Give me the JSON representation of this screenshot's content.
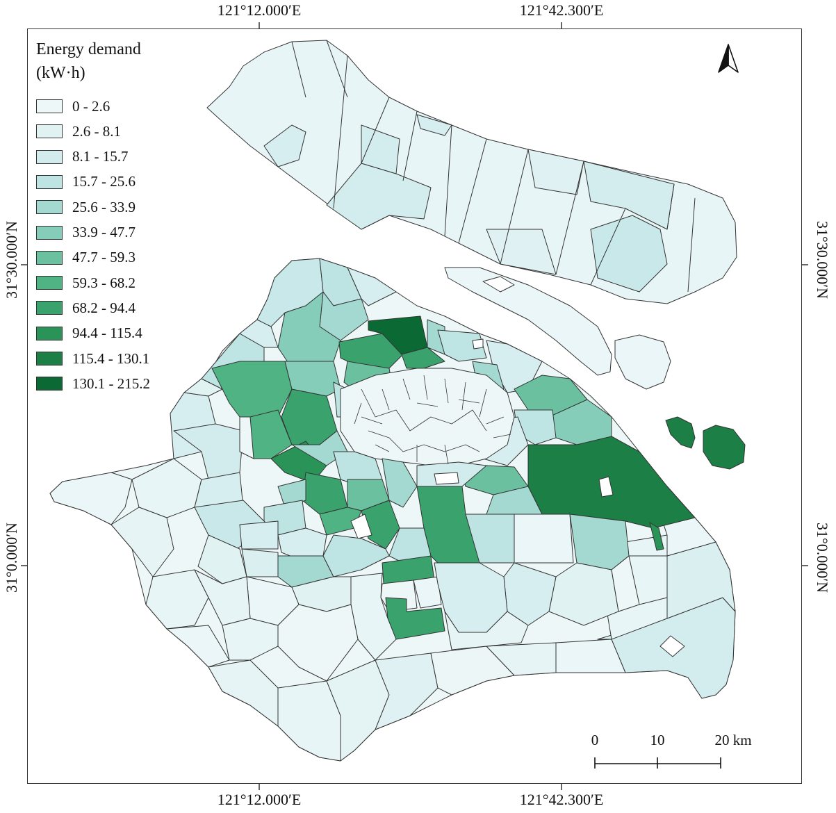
{
  "axes": {
    "top_labels": [
      "121°12.000′E",
      "121°42.300′E"
    ],
    "bottom_labels": [
      "121°12.000′E",
      "121°42.300′E"
    ],
    "left_labels": [
      "31°30.000′N",
      "31°0.000′N"
    ],
    "right_labels": [
      "31°30.000′N",
      "31°0.000′N"
    ]
  },
  "legend": {
    "title_line1": "Energy demand",
    "title_line2": "(kW·h)",
    "classes": [
      {
        "label": "0 - 2.6",
        "color": "#eef7f7"
      },
      {
        "label": "2.6 - 8.1",
        "color": "#e1f2f3"
      },
      {
        "label": "8.1 - 15.7",
        "color": "#d2ecee"
      },
      {
        "label": "15.7 - 25.6",
        "color": "#bde4e2"
      },
      {
        "label": "25.6 - 33.9",
        "color": "#a3d9d0"
      },
      {
        "label": "33.9 - 47.7",
        "color": "#86cdb9"
      },
      {
        "label": "47.7 - 59.3",
        "color": "#6bc0a0"
      },
      {
        "label": "59.3 - 68.2",
        "color": "#4fb383"
      },
      {
        "label": "68.2 - 94.4",
        "color": "#3aa36d"
      },
      {
        "label": "94.4 - 115.4",
        "color": "#2a9458"
      },
      {
        "label": "115.4 - 130.1",
        "color": "#1c7f45"
      },
      {
        "label": "130.1 - 215.2",
        "color": "#0b6a33"
      }
    ]
  },
  "scale_bar": {
    "labels": [
      "0",
      "10",
      "20 km"
    ]
  },
  "north_arrow": {
    "icon": "north-arrow-icon"
  }
}
